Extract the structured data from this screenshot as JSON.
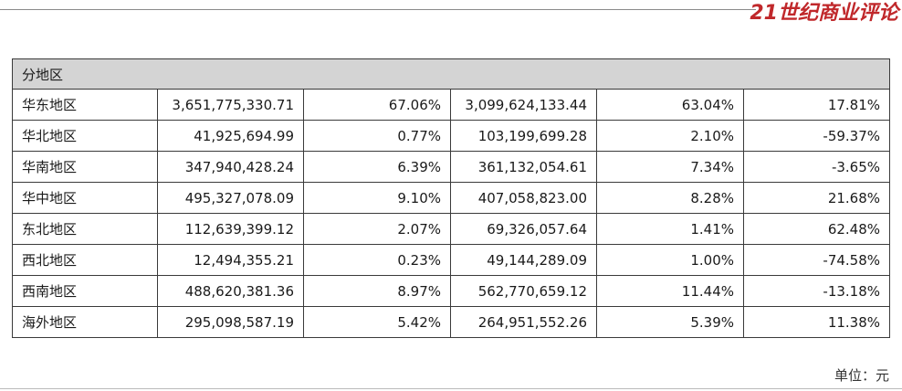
{
  "brand": {
    "name": "21世纪商业评论"
  },
  "table": {
    "header": "分地区",
    "rows": [
      {
        "region": "华东地区",
        "c1": "3,651,775,330.71",
        "c2": "67.06%",
        "c3": "3,099,624,133.44",
        "c4": "63.04%",
        "c5": "17.81%"
      },
      {
        "region": "华北地区",
        "c1": "41,925,694.99",
        "c2": "0.77%",
        "c3": "103,199,699.28",
        "c4": "2.10%",
        "c5": "-59.37%"
      },
      {
        "region": "华南地区",
        "c1": "347,940,428.24",
        "c2": "6.39%",
        "c3": "361,132,054.61",
        "c4": "7.34%",
        "c5": "-3.65%"
      },
      {
        "region": "华中地区",
        "c1": "495,327,078.09",
        "c2": "9.10%",
        "c3": "407,058,823.00",
        "c4": "8.28%",
        "c5": "21.68%"
      },
      {
        "region": "东北地区",
        "c1": "112,639,399.12",
        "c2": "2.07%",
        "c3": "69,326,057.64",
        "c4": "1.41%",
        "c5": "62.48%"
      },
      {
        "region": "西北地区",
        "c1": "12,494,355.21",
        "c2": "0.23%",
        "c3": "49,144,289.09",
        "c4": "1.00%",
        "c5": "-74.58%"
      },
      {
        "region": "西南地区",
        "c1": "488,620,381.36",
        "c2": "8.97%",
        "c3": "562,770,659.12",
        "c4": "11.44%",
        "c5": "-13.18%"
      },
      {
        "region": "海外地区",
        "c1": "295,098,587.19",
        "c2": "5.42%",
        "c3": "264,951,552.26",
        "c4": "5.39%",
        "c5": "11.38%"
      }
    ]
  },
  "unit_label": "单位：元",
  "colors": {
    "brand_red": "#c0282b",
    "header_bg": "#d4d4d4"
  }
}
